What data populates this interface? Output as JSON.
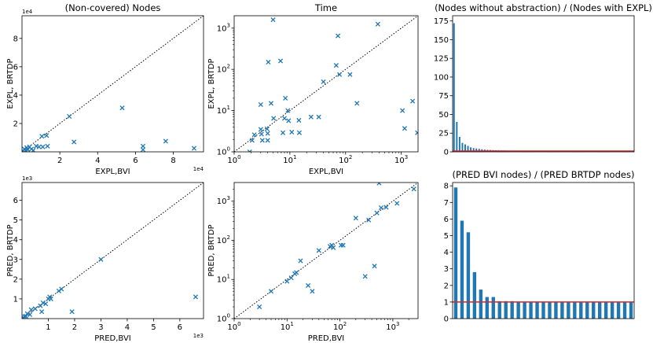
{
  "figure": {
    "colors": {
      "marker": "#1f77b4",
      "bar": "#1f77b4",
      "ref_line": "#d62728",
      "diagonal": "#000000",
      "axis": "#000000"
    }
  },
  "chart_data": [
    {
      "id": "p1",
      "type": "scatter",
      "scale": "linear",
      "title": "(Non-covered) Nodes",
      "xlabel": "EXPL,BVI",
      "ylabel": "EXPL, BRTDP",
      "x_multiplier": "1e4",
      "y_multiplier": "1e4",
      "xlim": [
        0,
        9.6
      ],
      "ylim": [
        0,
        9.6
      ],
      "xticks": [
        2,
        4,
        6,
        8
      ],
      "xtick_labels": [
        "2",
        "4",
        "6",
        "8"
      ],
      "yticks": [
        2,
        4,
        6,
        8
      ],
      "ytick_labels": [
        "2",
        "4",
        "6",
        "8"
      ],
      "diagonal": true,
      "points": [
        [
          0.05,
          0.05
        ],
        [
          0.12,
          0.2
        ],
        [
          0.2,
          0.1
        ],
        [
          0.25,
          0.3
        ],
        [
          0.3,
          0.15
        ],
        [
          0.4,
          0.35
        ],
        [
          0.5,
          0.2
        ],
        [
          0.6,
          0.1
        ],
        [
          0.75,
          0.4
        ],
        [
          0.9,
          0.35
        ],
        [
          1.05,
          1.1
        ],
        [
          1.1,
          0.35
        ],
        [
          1.3,
          1.15
        ],
        [
          1.35,
          0.4
        ],
        [
          2.5,
          2.5
        ],
        [
          2.75,
          0.7
        ],
        [
          5.3,
          3.1
        ],
        [
          6.4,
          0.4
        ],
        [
          6.4,
          0.15
        ],
        [
          7.6,
          0.75
        ],
        [
          9.1,
          0.25
        ]
      ]
    },
    {
      "id": "p2",
      "type": "scatter",
      "scale": "log",
      "title": "Time",
      "xlabel": "EXPL,BVI",
      "ylabel": "EXPL, BRTDP",
      "xlim": [
        1,
        2000
      ],
      "ylim": [
        1,
        2000
      ],
      "xticks": [
        1,
        10,
        100,
        1000
      ],
      "xtick_labels": [
        "10^0",
        "10^1",
        "10^2",
        "10^3"
      ],
      "yticks": [
        1,
        10,
        100,
        1000
      ],
      "ytick_labels": [
        "10^0",
        "10^1",
        "10^2",
        "10^3"
      ],
      "diagonal": true,
      "points": [
        [
          1.9,
          1.0
        ],
        [
          2.1,
          1.9
        ],
        [
          2.3,
          2.6
        ],
        [
          3.0,
          14
        ],
        [
          3.0,
          3.5
        ],
        [
          3.1,
          2.7
        ],
        [
          3.2,
          1.9
        ],
        [
          3.9,
          3.6
        ],
        [
          4.0,
          2.8
        ],
        [
          4.0,
          1.9
        ],
        [
          4.1,
          150
        ],
        [
          4.6,
          15
        ],
        [
          5.1,
          6.5
        ],
        [
          5.0,
          1600
        ],
        [
          6.8,
          160
        ],
        [
          7.5,
          2.9
        ],
        [
          8.0,
          6.5
        ],
        [
          8.3,
          20
        ],
        [
          9.2,
          10
        ],
        [
          9.5,
          5.7
        ],
        [
          10.8,
          3.0
        ],
        [
          14.5,
          5.8
        ],
        [
          14.8,
          2.9
        ],
        [
          24,
          7
        ],
        [
          33,
          7
        ],
        [
          40,
          50
        ],
        [
          68,
          125
        ],
        [
          73,
          650
        ],
        [
          78,
          75
        ],
        [
          120,
          75
        ],
        [
          160,
          15
        ],
        [
          380,
          1250
        ],
        [
          1050,
          10
        ],
        [
          1150,
          3.7
        ],
        [
          1600,
          17
        ],
        [
          1950,
          2.9
        ]
      ]
    },
    {
      "id": "p3",
      "type": "bar",
      "title": "(Nodes without abstraction) / (Nodes with EXPL)",
      "xlabel": "",
      "ylabel": "",
      "ylim": [
        0,
        182
      ],
      "yticks": [
        0,
        25,
        50,
        75,
        100,
        125,
        150,
        175
      ],
      "ytick_labels": [
        "0",
        "25",
        "50",
        "75",
        "100",
        "125",
        "150",
        "175"
      ],
      "reference_line": 1,
      "values": [
        172,
        40,
        20,
        12,
        10,
        8,
        6,
        5,
        4.5,
        4,
        3.5,
        3,
        2.7,
        2.5,
        2.3,
        2.1,
        2,
        1.9,
        1.8,
        1.7,
        1.6,
        1.5,
        1.5,
        1.4,
        1.4,
        1.3,
        1.3,
        1.3,
        1.2,
        1.2,
        1.2,
        1.1,
        1.1,
        1.1,
        1.1,
        1.1,
        1.05,
        1.05,
        1.05,
        1.05,
        1.0,
        1.0,
        1.0,
        1.0,
        1.0,
        1.0,
        1.0,
        1.0,
        1.0,
        1.0,
        1.0,
        1.0,
        1.0,
        1.0,
        1.0,
        1.0,
        1.0,
        1.0,
        1.0,
        1.0,
        1.0,
        1.0,
        1.0,
        1.0,
        1.0
      ]
    },
    {
      "id": "p4",
      "type": "scatter",
      "scale": "linear",
      "title": "",
      "xlabel": "PRED,BVI",
      "ylabel": "PRED, BRTDP",
      "x_multiplier": "1e3",
      "y_multiplier": "1e3",
      "xlim": [
        0,
        6.9
      ],
      "ylim": [
        0,
        6.9
      ],
      "xticks": [
        1,
        2,
        3,
        4,
        5,
        6
      ],
      "xtick_labels": [
        "1",
        "2",
        "3",
        "4",
        "5",
        "6"
      ],
      "yticks": [
        1,
        2,
        3,
        4,
        5,
        6
      ],
      "ytick_labels": [
        "1",
        "2",
        "3",
        "4",
        "5",
        "6"
      ],
      "diagonal": true,
      "points": [
        [
          0.05,
          0.05
        ],
        [
          0.1,
          0.1
        ],
        [
          0.15,
          0.12
        ],
        [
          0.2,
          0.25
        ],
        [
          0.3,
          0.2
        ],
        [
          0.35,
          0.45
        ],
        [
          0.5,
          0.5
        ],
        [
          0.7,
          0.65
        ],
        [
          0.75,
          0.35
        ],
        [
          0.8,
          0.8
        ],
        [
          0.9,
          0.75
        ],
        [
          1.0,
          1.0
        ],
        [
          1.05,
          1.1
        ],
        [
          1.1,
          1.0
        ],
        [
          1.4,
          1.4
        ],
        [
          1.5,
          1.5
        ],
        [
          1.9,
          0.35
        ],
        [
          3.0,
          3.0
        ],
        [
          6.6,
          1.1
        ]
      ]
    },
    {
      "id": "p5",
      "type": "scatter",
      "scale": "log",
      "title": "",
      "xlabel": "PRED,BVI",
      "ylabel": "PRED, BRTDP",
      "xlim": [
        1,
        3000
      ],
      "ylim": [
        1,
        3000
      ],
      "xticks": [
        1,
        10,
        100,
        1000
      ],
      "xtick_labels": [
        "10^0",
        "10^1",
        "10^2",
        "10^3"
      ],
      "yticks": [
        1,
        10,
        100,
        1000
      ],
      "ytick_labels": [
        "10^0",
        "10^1",
        "10^2",
        "10^3"
      ],
      "diagonal": true,
      "points": [
        [
          3,
          2
        ],
        [
          5,
          5
        ],
        [
          10,
          9
        ],
        [
          12,
          11
        ],
        [
          14,
          14
        ],
        [
          15,
          15
        ],
        [
          18,
          30
        ],
        [
          25,
          7
        ],
        [
          30,
          5
        ],
        [
          40,
          55
        ],
        [
          65,
          70
        ],
        [
          70,
          75
        ],
        [
          75,
          65
        ],
        [
          105,
          75
        ],
        [
          115,
          75
        ],
        [
          200,
          370
        ],
        [
          300,
          12
        ],
        [
          350,
          330
        ],
        [
          450,
          22
        ],
        [
          500,
          500
        ],
        [
          550,
          2900
        ],
        [
          600,
          680
        ],
        [
          750,
          700
        ],
        [
          1200,
          880
        ],
        [
          2500,
          2050
        ]
      ]
    },
    {
      "id": "p6",
      "type": "bar",
      "title": "(PRED BVI nodes) / (PRED BRTDP nodes)",
      "xlabel": "",
      "ylabel": "",
      "ylim": [
        0,
        8.2
      ],
      "yticks": [
        0,
        1,
        2,
        3,
        4,
        5,
        6,
        7,
        8
      ],
      "ytick_labels": [
        "0",
        "1",
        "2",
        "3",
        "4",
        "5",
        "6",
        "7",
        "8"
      ],
      "reference_line": 1,
      "values": [
        7.9,
        5.9,
        5.2,
        2.8,
        1.75,
        1.3,
        1.3,
        1.05,
        1.05,
        1.05,
        1.0,
        1.0,
        1.0,
        1.0,
        1.0,
        1.0,
        1.0,
        1.0,
        1.0,
        1.0,
        1.0,
        1.0,
        1.0,
        1.0,
        1.0,
        1.0,
        1.0,
        1.0,
        1.0
      ]
    }
  ]
}
